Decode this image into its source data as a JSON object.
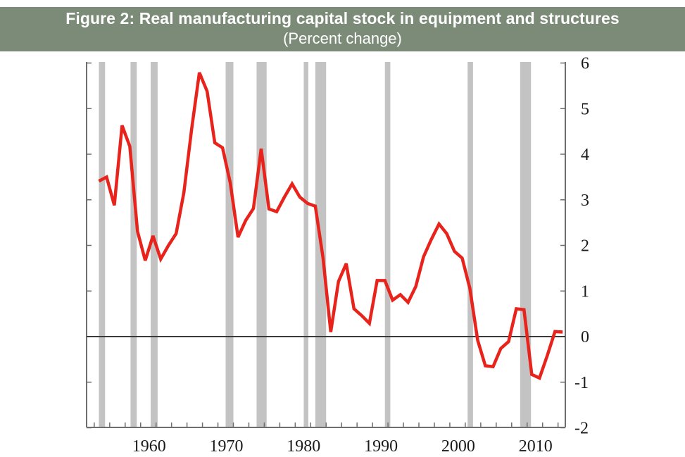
{
  "header": {
    "title": "Figure 2: Real manufacturing capital stock in equipment and structures",
    "subtitle": "(Percent change)"
  },
  "colors": {
    "header_bg": "#7b8b78",
    "line": "#e8231b",
    "recession": "#c3c3c3",
    "axis": "#6e6e6e",
    "zero_line": "#3a3a3a"
  },
  "chart_data": {
    "type": "line",
    "title": "Figure 2: Real manufacturing capital stock in equipment and structures",
    "subtitle": "(Percent change)",
    "xlabel": "",
    "ylabel": "",
    "xlim": [
      1951.0,
      2012.9
    ],
    "ylim": [
      -2,
      6
    ],
    "x_ticks": [
      "1960",
      "1970",
      "1980",
      "1990",
      "2000",
      "2010"
    ],
    "x_tick_values": [
      1960,
      1970,
      1980,
      1990,
      2000,
      2010
    ],
    "y_ticks": [
      "6",
      "5",
      "4",
      "3",
      "2",
      "1",
      "0",
      "-1",
      "-2"
    ],
    "y_tick_values": [
      6,
      5,
      4,
      3,
      2,
      1,
      0,
      -1,
      -2
    ],
    "y_axis_position": "right",
    "grid": false,
    "zero_line": true,
    "recession_shading": [
      [
        1952.6,
        1953.4
      ],
      [
        1956.7,
        1957.5
      ],
      [
        1959.3,
        1960.2
      ],
      [
        1969.0,
        1970.0
      ],
      [
        1973.0,
        1974.3
      ],
      [
        1979.1,
        1979.7
      ],
      [
        1980.6,
        1982.0
      ],
      [
        1989.6,
        1990.3
      ],
      [
        2000.3,
        2001.0
      ],
      [
        2007.1,
        2008.5
      ]
    ],
    "series": [
      {
        "name": "Real manufacturing capital stock (percent change)",
        "x": [
          1953,
          1954,
          1955,
          1956,
          1957,
          1958,
          1959,
          1960,
          1961,
          1962,
          1963,
          1964,
          1965,
          1966,
          1967,
          1968,
          1969,
          1970,
          1971,
          1972,
          1973,
          1974,
          1975,
          1976,
          1977,
          1978,
          1979,
          1980,
          1981,
          1982,
          1983,
          1984,
          1985,
          1986,
          1987,
          1988,
          1989,
          1990,
          1991,
          1992,
          1993,
          1994,
          1995,
          1996,
          1997,
          1998,
          1999,
          2000,
          2001,
          2002,
          2003,
          2004,
          2005,
          2006,
          2007,
          2008,
          2009,
          2010,
          2011,
          2012,
          2013
        ],
        "values": [
          3.41,
          3.5,
          2.88,
          4.63,
          4.17,
          2.31,
          1.67,
          2.21,
          1.7,
          2.0,
          2.26,
          3.16,
          4.55,
          5.79,
          5.38,
          4.25,
          4.14,
          3.37,
          2.18,
          2.55,
          2.81,
          4.12,
          2.8,
          2.74,
          3.06,
          3.35,
          3.06,
          2.92,
          2.86,
          1.72,
          0.1,
          1.21,
          1.6,
          0.61,
          0.46,
          0.29,
          1.23,
          1.23,
          0.8,
          0.92,
          0.75,
          1.1,
          1.75,
          2.13,
          2.47,
          2.26,
          1.87,
          1.72,
          1.05,
          -0.08,
          -0.64,
          -0.66,
          -0.26,
          -0.11,
          0.61,
          0.59,
          -0.83,
          -0.91,
          -0.42,
          0.11,
          0.1
        ]
      }
    ]
  }
}
